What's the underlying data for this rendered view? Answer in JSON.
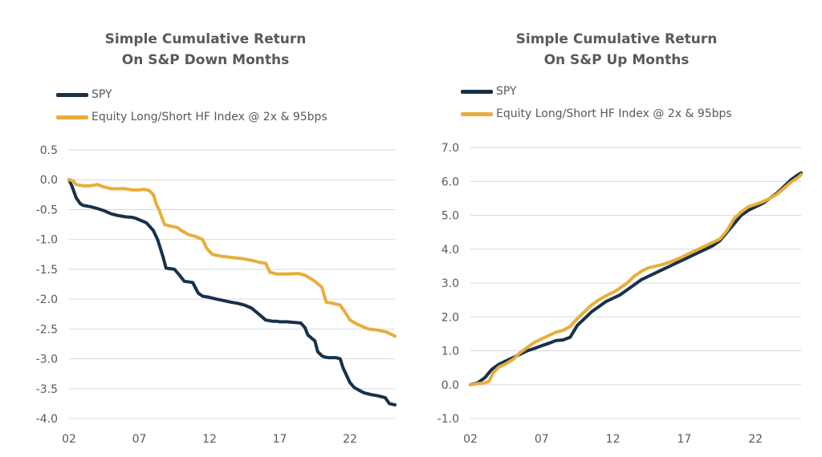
{
  "colors": {
    "spy": "#17324a",
    "hf": "#e8ae3a",
    "grid": "#d9d9d9",
    "text": "#595959"
  },
  "chart_data": [
    {
      "type": "line",
      "title": [
        "Simple Cumulative Return",
        "On S&P Down Months"
      ],
      "xlabel": "",
      "ylabel": "",
      "x_ticks": [
        "02",
        "07",
        "12",
        "17",
        "22"
      ],
      "x_tick_values": [
        2,
        7,
        12,
        17,
        22
      ],
      "xlim": [
        2,
        25.2
      ],
      "ylim": [
        -4.0,
        0.5
      ],
      "y_ticks": [
        0.5,
        0.0,
        -0.5,
        -1.0,
        -1.5,
        -2.0,
        -2.5,
        -3.0,
        -3.5,
        -4.0
      ],
      "y_tick_labels": [
        "0.5",
        "0.0",
        "-0.5",
        "-1.0",
        "-1.5",
        "-2.0",
        "-2.5",
        "-3.0",
        "-3.5",
        "-4.0"
      ],
      "grid": true,
      "legend": "top-left",
      "series": [
        {
          "name": "SPY",
          "color": "#17324a",
          "x": [
            2.0,
            2.2,
            2.5,
            2.8,
            3.0,
            3.5,
            4.0,
            4.5,
            5.0,
            5.5,
            6.0,
            6.5,
            6.8,
            7.0,
            7.5,
            8.0,
            8.3,
            8.5,
            8.7,
            8.9,
            9.5,
            9.8,
            10.2,
            10.8,
            11.2,
            11.5,
            12.0,
            12.5,
            13.5,
            14.0,
            14.5,
            15.0,
            15.5,
            16.0,
            16.5,
            16.8,
            17.0,
            17.5,
            18.5,
            18.8,
            19.0,
            19.5,
            19.7,
            20.0,
            20.2,
            20.5,
            21.0,
            21.3,
            21.5,
            21.8,
            22.0,
            22.3,
            22.6,
            23.0,
            23.5,
            24.0,
            24.5,
            24.8,
            25.2
          ],
          "y": [
            0.0,
            -0.1,
            -0.3,
            -0.4,
            -0.43,
            -0.45,
            -0.48,
            -0.52,
            -0.57,
            -0.6,
            -0.62,
            -0.63,
            -0.65,
            -0.67,
            -0.72,
            -0.85,
            -1.0,
            -1.15,
            -1.3,
            -1.48,
            -1.5,
            -1.58,
            -1.7,
            -1.72,
            -1.9,
            -1.95,
            -1.97,
            -2.0,
            -2.05,
            -2.07,
            -2.1,
            -2.15,
            -2.25,
            -2.35,
            -2.37,
            -2.37,
            -2.38,
            -2.38,
            -2.4,
            -2.48,
            -2.6,
            -2.7,
            -2.88,
            -2.95,
            -2.97,
            -2.98,
            -2.98,
            -3.0,
            -3.15,
            -3.3,
            -3.4,
            -3.48,
            -3.52,
            -3.57,
            -3.6,
            -3.62,
            -3.65,
            -3.75,
            -3.77
          ]
        },
        {
          "name": "Equity Long/Short HF Index @ 2x & 95bps",
          "color": "#e8ae3a",
          "x": [
            2.0,
            2.3,
            2.5,
            3.0,
            3.5,
            4.0,
            4.5,
            5.0,
            5.5,
            6.0,
            6.5,
            7.0,
            7.3,
            7.7,
            8.0,
            8.2,
            8.4,
            8.8,
            9.3,
            9.7,
            10.0,
            10.5,
            11.0,
            11.5,
            11.8,
            12.2,
            12.8,
            13.5,
            14.3,
            15.0,
            15.5,
            16.0,
            16.3,
            16.8,
            17.5,
            18.3,
            18.8,
            19.3,
            19.6,
            20.0,
            20.3,
            20.8,
            21.3,
            21.6,
            22.0,
            22.5,
            22.8,
            23.3,
            24.0,
            24.6,
            25.2
          ],
          "y": [
            0.0,
            -0.02,
            -0.08,
            -0.1,
            -0.1,
            -0.08,
            -0.12,
            -0.15,
            -0.15,
            -0.15,
            -0.17,
            -0.17,
            -0.16,
            -0.18,
            -0.25,
            -0.4,
            -0.5,
            -0.75,
            -0.78,
            -0.8,
            -0.85,
            -0.92,
            -0.95,
            -1.0,
            -1.15,
            -1.25,
            -1.28,
            -1.3,
            -1.32,
            -1.35,
            -1.38,
            -1.4,
            -1.55,
            -1.58,
            -1.58,
            -1.57,
            -1.6,
            -1.67,
            -1.72,
            -1.8,
            -2.05,
            -2.07,
            -2.1,
            -2.2,
            -2.35,
            -2.42,
            -2.45,
            -2.5,
            -2.52,
            -2.55,
            -2.62
          ]
        }
      ]
    },
    {
      "type": "line",
      "title": [
        "Simple Cumulative Return",
        "On S&P Up Months"
      ],
      "xlabel": "",
      "ylabel": "",
      "x_ticks": [
        "02",
        "07",
        "12",
        "17",
        "22"
      ],
      "x_tick_values": [
        2,
        7,
        12,
        17,
        22
      ],
      "xlim": [
        2,
        25.2
      ],
      "ylim": [
        -1.0,
        7.0
      ],
      "y_ticks": [
        7.0,
        6.0,
        5.0,
        4.0,
        3.0,
        2.0,
        1.0,
        0.0,
        -1.0
      ],
      "y_tick_labels": [
        "7.0",
        "6.0",
        "5.0",
        "4.0",
        "3.0",
        "2.0",
        "1.0",
        "0.0",
        "-1.0"
      ],
      "grid": true,
      "legend": "top-left",
      "series": [
        {
          "name": "SPY",
          "color": "#17324a",
          "x": [
            2.0,
            2.5,
            3.0,
            3.5,
            4.0,
            4.5,
            5.0,
            5.5,
            6.0,
            6.5,
            7.0,
            7.5,
            8.0,
            8.5,
            9.0,
            9.5,
            10.0,
            10.5,
            11.0,
            11.5,
            12.0,
            12.5,
            13.0,
            13.5,
            14.0,
            14.5,
            15.0,
            15.5,
            16.0,
            16.5,
            17.0,
            17.5,
            18.0,
            18.5,
            19.0,
            19.5,
            20.0,
            20.5,
            21.0,
            21.5,
            22.0,
            22.5,
            23.0,
            23.5,
            24.0,
            24.5,
            25.0,
            25.2
          ],
          "y": [
            0.0,
            0.05,
            0.2,
            0.45,
            0.6,
            0.7,
            0.8,
            0.9,
            1.0,
            1.07,
            1.15,
            1.22,
            1.3,
            1.32,
            1.4,
            1.75,
            1.95,
            2.15,
            2.3,
            2.45,
            2.55,
            2.65,
            2.8,
            2.95,
            3.1,
            3.2,
            3.3,
            3.4,
            3.5,
            3.6,
            3.7,
            3.8,
            3.9,
            4.0,
            4.1,
            4.25,
            4.5,
            4.75,
            5.0,
            5.15,
            5.25,
            5.35,
            5.5,
            5.65,
            5.85,
            6.05,
            6.2,
            6.25
          ]
        },
        {
          "name": "Equity Long/Short HF Index @ 2x & 95bps",
          "color": "#e8ae3a",
          "x": [
            2.0,
            2.5,
            3.0,
            3.3,
            3.6,
            4.0,
            4.5,
            5.0,
            5.5,
            6.0,
            6.5,
            7.0,
            7.5,
            8.0,
            8.5,
            9.0,
            9.5,
            10.0,
            10.5,
            11.0,
            11.5,
            12.0,
            12.5,
            13.0,
            13.5,
            14.0,
            14.5,
            15.0,
            15.5,
            16.0,
            16.5,
            17.0,
            17.5,
            18.0,
            18.5,
            19.0,
            19.5,
            20.0,
            20.5,
            21.0,
            21.5,
            22.0,
            22.5,
            23.0,
            23.5,
            24.0,
            24.5,
            25.0,
            25.2
          ],
          "y": [
            0.0,
            0.03,
            0.05,
            0.1,
            0.35,
            0.52,
            0.62,
            0.75,
            0.95,
            1.1,
            1.25,
            1.35,
            1.45,
            1.55,
            1.6,
            1.72,
            1.95,
            2.15,
            2.35,
            2.5,
            2.62,
            2.72,
            2.85,
            3.0,
            3.2,
            3.35,
            3.45,
            3.5,
            3.55,
            3.62,
            3.7,
            3.8,
            3.9,
            4.0,
            4.1,
            4.2,
            4.3,
            4.55,
            4.9,
            5.1,
            5.25,
            5.32,
            5.4,
            5.5,
            5.62,
            5.8,
            5.98,
            6.12,
            6.2
          ]
        }
      ]
    }
  ]
}
